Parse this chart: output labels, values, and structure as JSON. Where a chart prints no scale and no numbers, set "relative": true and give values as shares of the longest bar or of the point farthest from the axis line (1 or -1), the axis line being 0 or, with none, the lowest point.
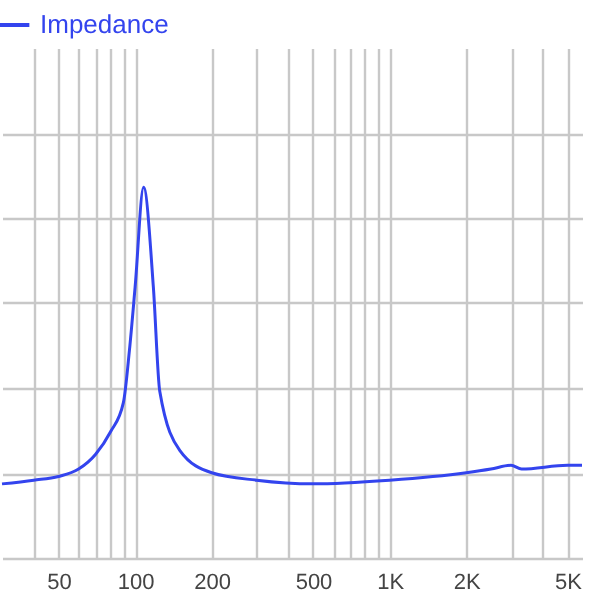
{
  "chart_data": {
    "type": "line",
    "relative": true,
    "log": "x",
    "grid": true,
    "legend": "top left",
    "line_style": "solid",
    "marker": "none",
    "x": [
      30,
      40,
      50,
      60,
      70,
      80,
      90,
      95,
      100,
      108,
      118,
      125,
      150,
      200,
      300,
      500,
      1000,
      2000,
      2500,
      3000,
      3300,
      5000,
      5700
    ],
    "xlim": [
      30,
      5700
    ],
    "xticks": [
      {
        "value": 40,
        "label": null
      },
      50,
      {
        "value": 60,
        "label": null
      },
      {
        "value": 70,
        "label": null
      },
      {
        "value": 80,
        "label": null
      },
      {
        "value": 90,
        "label": null
      },
      100,
      200,
      {
        "value": 300,
        "label": null
      },
      {
        "value": 400,
        "label": null
      },
      500,
      {
        "value": 600,
        "label": null
      },
      {
        "value": 700,
        "label": null
      },
      {
        "value": 800,
        "label": null
      },
      {
        "value": 900,
        "label": null
      },
      {
        "value": 1000,
        "label": "1K"
      },
      {
        "value": 2000,
        "label": "2K"
      },
      {
        "value": 3000,
        "label": null
      },
      {
        "value": 4000,
        "label": null
      },
      {
        "value": 5000,
        "label": "5K"
      }
    ],
    "tick_labels": "x",
    "series": [
      {
        "name": "Impedance",
        "color": "#3344ee",
        "values": [
          0.2,
          0.21,
          0.22,
          0.24,
          0.28,
          0.34,
          0.42,
          0.56,
          0.73,
          1.0,
          0.73,
          0.45,
          0.29,
          0.23,
          0.21,
          0.2,
          0.21,
          0.23,
          0.24,
          0.25,
          0.24,
          0.25,
          0.25
        ]
      }
    ]
  }
}
